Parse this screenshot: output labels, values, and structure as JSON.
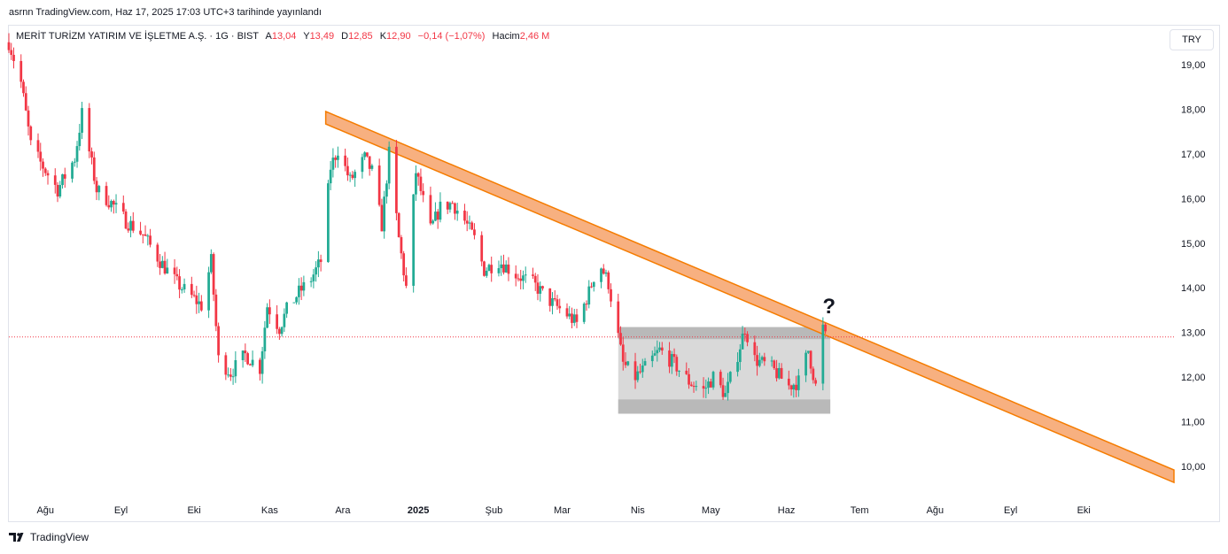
{
  "caption": "asrnn TradingView.com, Haz 17, 2025 17:03 UTC+3 tarihinde yayınlandı",
  "legend": {
    "symbol": "MERİT TURİZM YATIRIM VE İŞLETME A.Ş. · 1G · BIST",
    "open_label": "A",
    "open": "13,04",
    "high_label": "Y",
    "high": "13,49",
    "low_label": "D",
    "low": "12,85",
    "close_label": "K",
    "close": "12,90",
    "change": "−0,14 (−1,07%)",
    "volume_label": "Hacim",
    "volume": "2,46 M"
  },
  "currency": "TRY",
  "annotation": "?",
  "footer_brand": "TradingView",
  "colors": {
    "up": "#22ab94",
    "down": "#f23645",
    "trendline": "#f57c00",
    "channel_fill": "#f7b080",
    "box_fill": "#d9d9d9",
    "box_band": "#b9b9b9",
    "last_price_line": "#f23645"
  },
  "chart_data": {
    "type": "candlestick",
    "y_unit": "TRY",
    "ylim": [
      9.5,
      19.8
    ],
    "y_ticks": [
      "19,00",
      "18,00",
      "17,00",
      "16,00",
      "15,00",
      "14,00",
      "13,00",
      "12,00",
      "11,00",
      "10,00"
    ],
    "y_tick_values": [
      19,
      18,
      17,
      16,
      15,
      14,
      13,
      12,
      11,
      10
    ],
    "x_labels": [
      "Ağu",
      "Eyl",
      "Eki",
      "Kas",
      "Ara",
      "2025",
      "Şub",
      "Mar",
      "Nis",
      "May",
      "Haz",
      "Tem",
      "Ağu",
      "Eyl",
      "Eki"
    ],
    "x_label_bold": [
      false,
      false,
      false,
      false,
      false,
      true,
      false,
      false,
      false,
      false,
      false,
      false,
      false,
      false,
      false
    ],
    "x_range": [
      "2024-07-17",
      "2025-11-07"
    ],
    "x_label_dates": [
      "2024-08-01",
      "2024-09-01",
      "2024-10-01",
      "2024-11-01",
      "2024-12-01",
      "2025-01-01",
      "2025-02-01",
      "2025-03-01",
      "2025-04-01",
      "2025-05-01",
      "2025-06-01",
      "2025-07-01",
      "2025-08-01",
      "2025-09-01",
      "2025-10-01"
    ],
    "last_price": 12.9,
    "grid": false,
    "price_path": [
      [
        "2024-07-17",
        19.5
      ],
      [
        "2024-07-22",
        18.6
      ],
      [
        "2024-07-26",
        17.2
      ],
      [
        "2024-07-30",
        16.8
      ],
      [
        "2024-08-06",
        16.2
      ],
      [
        "2024-08-13",
        16.9
      ],
      [
        "2024-08-16",
        17.9
      ],
      [
        "2024-08-22",
        16.2
      ],
      [
        "2024-08-28",
        15.9
      ],
      [
        "2024-09-03",
        15.5
      ],
      [
        "2024-09-10",
        15.2
      ],
      [
        "2024-09-17",
        14.6
      ],
      [
        "2024-09-24",
        14.1
      ],
      [
        "2024-09-30",
        13.8
      ],
      [
        "2024-10-04",
        13.6
      ],
      [
        "2024-10-08",
        14.6
      ],
      [
        "2024-10-11",
        12.4
      ],
      [
        "2024-10-16",
        12.1
      ],
      [
        "2024-10-22",
        12.5
      ],
      [
        "2024-10-28",
        12.2
      ],
      [
        "2024-10-31",
        13.6
      ],
      [
        "2024-11-05",
        13.1
      ],
      [
        "2024-11-08",
        13.5
      ],
      [
        "2024-11-13",
        13.9
      ],
      [
        "2024-11-18",
        14.2
      ],
      [
        "2024-11-22",
        14.6
      ],
      [
        "2024-11-26",
        16.7
      ],
      [
        "2024-11-29",
        17.1
      ],
      [
        "2024-12-04",
        16.4
      ],
      [
        "2024-12-10",
        16.9
      ],
      [
        "2024-12-13",
        16.6
      ],
      [
        "2024-12-17",
        15.4
      ],
      [
        "2024-12-20",
        17.0
      ],
      [
        "2024-12-24",
        15.1
      ],
      [
        "2024-12-27",
        14.0
      ],
      [
        "2024-12-31",
        16.6
      ],
      [
        "2025-01-06",
        15.3
      ],
      [
        "2025-01-10",
        15.8
      ],
      [
        "2025-01-15",
        15.9
      ],
      [
        "2025-01-20",
        15.5
      ],
      [
        "2025-01-24",
        15.1
      ],
      [
        "2025-01-28",
        14.4
      ],
      [
        "2025-02-03",
        14.6
      ],
      [
        "2025-02-10",
        14.3
      ],
      [
        "2025-02-17",
        14.1
      ],
      [
        "2025-02-24",
        13.7
      ],
      [
        "2025-03-03",
        13.4
      ],
      [
        "2025-03-07",
        13.2
      ],
      [
        "2025-03-12",
        13.9
      ],
      [
        "2025-03-16",
        14.6
      ],
      [
        "2025-03-20",
        14.1
      ],
      [
        "2025-03-26",
        12.3
      ],
      [
        "2025-03-31",
        12.0
      ],
      [
        "2025-04-04",
        12.2
      ],
      [
        "2025-04-10",
        12.6
      ],
      [
        "2025-04-16",
        12.3
      ],
      [
        "2025-04-22",
        11.9
      ],
      [
        "2025-04-28",
        11.7
      ],
      [
        "2025-05-02",
        12.0
      ],
      [
        "2025-05-07",
        11.6
      ],
      [
        "2025-05-12",
        12.5
      ],
      [
        "2025-05-15",
        13.1
      ],
      [
        "2025-05-19",
        12.4
      ],
      [
        "2025-05-26",
        12.2
      ],
      [
        "2025-06-02",
        11.8
      ],
      [
        "2025-06-06",
        11.9
      ],
      [
        "2025-06-10",
        12.6
      ],
      [
        "2025-06-13",
        11.8
      ],
      [
        "2025-06-16",
        13.1
      ],
      [
        "2025-06-17",
        12.9
      ]
    ],
    "annotations": {
      "trend_channel": {
        "start": [
          "2024-11-24",
          17.95
        ],
        "end": [
          "2025-11-07",
          9.92
        ],
        "band_height": 0.28
      },
      "range_box": {
        "start": "2025-03-24",
        "end": "2025-06-19",
        "top": 13.12,
        "bottom": 11.18,
        "bands": [
          [
            11.5,
            11.18
          ],
          [
            13.12,
            12.85
          ]
        ]
      },
      "question_mark_at": [
        "2025-06-18",
        13.35
      ]
    }
  }
}
